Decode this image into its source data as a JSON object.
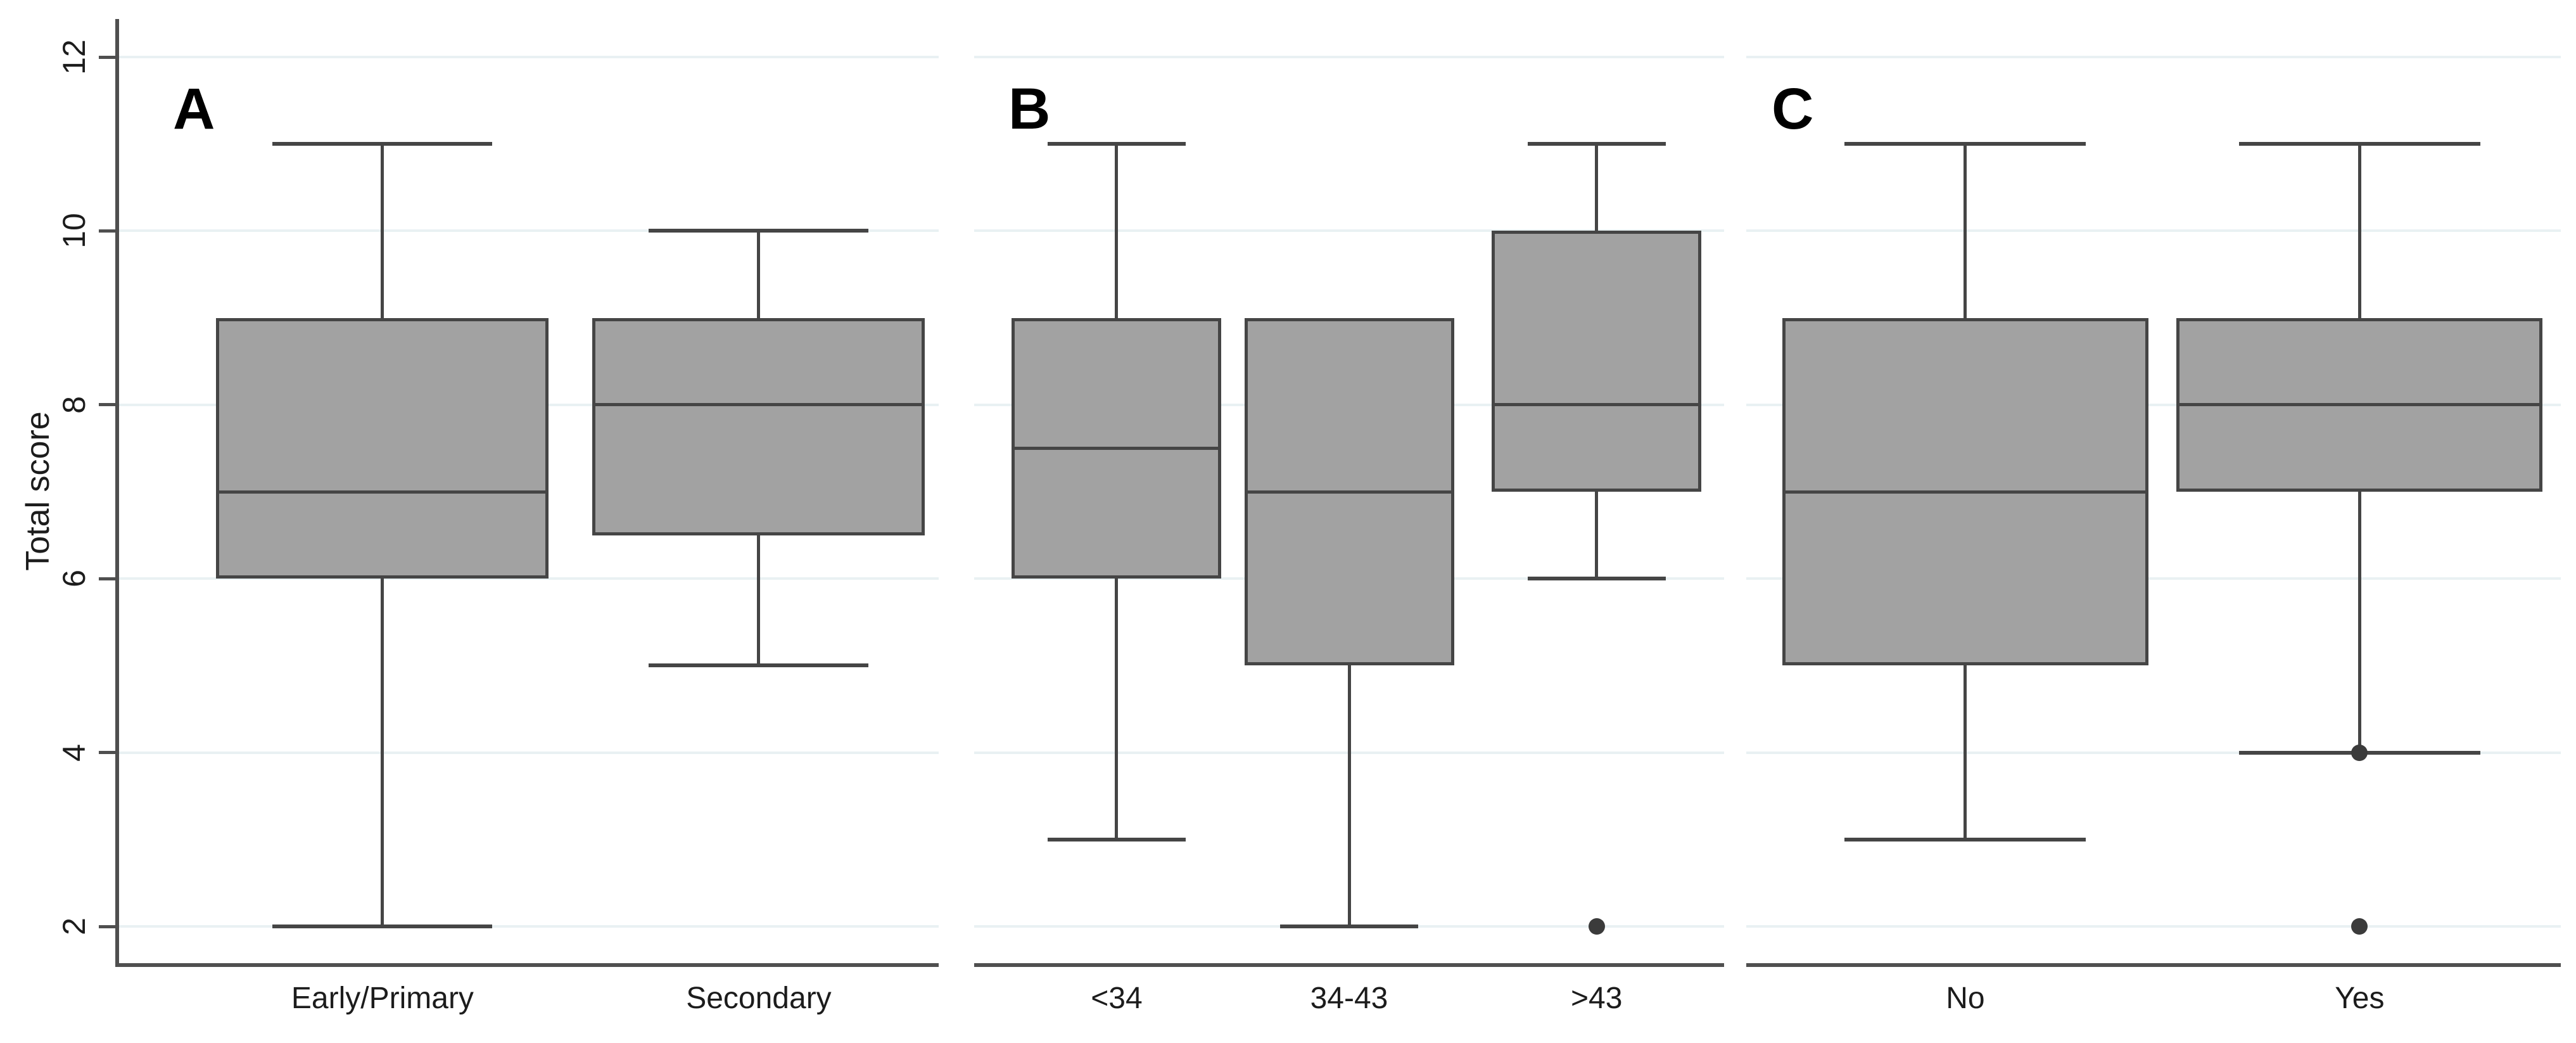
{
  "figure": {
    "background": "#ffffff"
  },
  "colors": {
    "box_fill": "#a2a2a2",
    "box_stroke": "#454545",
    "axis": "#4f4f4f",
    "gridline": "#e9f1f3",
    "outlier": "#3b3b3b",
    "text": "#1c1c1c",
    "panel_letter": "#000000"
  },
  "chart_data": {
    "type": "boxplot",
    "title": "",
    "xlabel": "",
    "ylabel": "Total score",
    "y_ticks": [
      2,
      4,
      6,
      8,
      10,
      12
    ],
    "ylim": [
      1.56,
      12.44
    ],
    "grid": true,
    "legend": "none",
    "panels": [
      {
        "label": "A",
        "categories": [
          "Early/Primary",
          "Secondary"
        ],
        "boxes": [
          {
            "category": "Early/Primary",
            "whisker_low": 2,
            "q1": 6,
            "median": 7,
            "q3": 9,
            "whisker_high": 11,
            "outliers": []
          },
          {
            "category": "Secondary",
            "whisker_low": 5,
            "q1": 6.5,
            "median": 8,
            "q3": 9,
            "whisker_high": 10,
            "outliers": []
          }
        ]
      },
      {
        "label": "B",
        "categories": [
          "<34",
          "34-43",
          ">43"
        ],
        "boxes": [
          {
            "category": "<34",
            "whisker_low": 3,
            "q1": 6,
            "median": 7.5,
            "q3": 9,
            "whisker_high": 11,
            "outliers": []
          },
          {
            "category": "34-43",
            "whisker_low": 2,
            "q1": 5,
            "median": 7,
            "q3": 9,
            "whisker_high": 9,
            "outliers": []
          },
          {
            "category": ">43",
            "whisker_low": 6,
            "q1": 7,
            "median": 8,
            "q3": 10,
            "whisker_high": 11,
            "outliers": [
              2
            ]
          }
        ]
      },
      {
        "label": "C",
        "categories": [
          "No",
          "Yes"
        ],
        "boxes": [
          {
            "category": "No",
            "whisker_low": 3,
            "q1": 5,
            "median": 7,
            "q3": 9,
            "whisker_high": 11,
            "outliers": []
          },
          {
            "category": "Yes",
            "whisker_low": 4,
            "q1": 7,
            "median": 8,
            "q3": 9,
            "whisker_high": 11,
            "outliers": [
              4,
              2
            ]
          }
        ]
      }
    ]
  }
}
